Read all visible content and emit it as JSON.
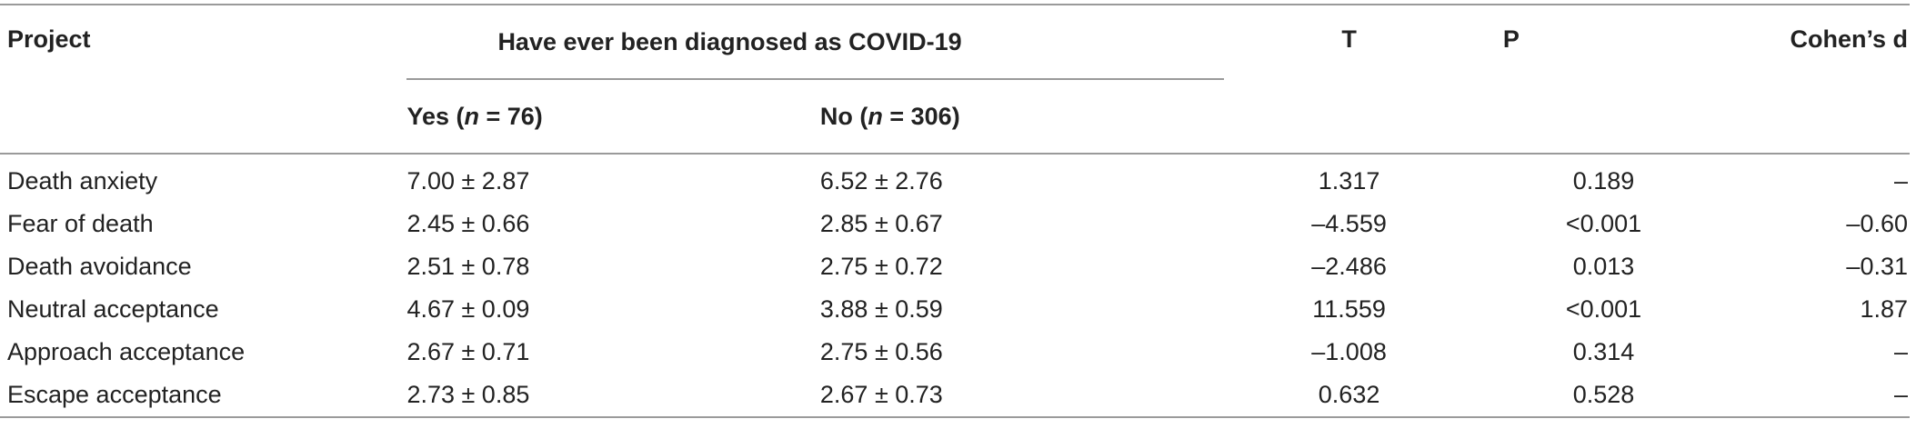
{
  "table": {
    "headers": {
      "project": "Project",
      "group": "Have ever been diagnosed as COVID-19",
      "yes_prefix": "Yes (",
      "yes_n": "n",
      "yes_suffix": " = 76)",
      "no_prefix": "No (",
      "no_n": "n",
      "no_suffix": " = 306)",
      "t": "T",
      "p": "P",
      "d": "Cohen’s d"
    },
    "rows": [
      {
        "project": "Death anxiety",
        "yes": "7.00 ± 2.87",
        "no": "6.52 ± 2.76",
        "t": "1.317",
        "p": "0.189",
        "d": "–"
      },
      {
        "project": "Fear of death",
        "yes": "2.45 ± 0.66",
        "no": "2.85 ± 0.67",
        "t": "–4.559",
        "p": "<0.001",
        "d": "–0.60"
      },
      {
        "project": "Death avoidance",
        "yes": "2.51 ± 0.78",
        "no": "2.75 ± 0.72",
        "t": "–2.486",
        "p": "0.013",
        "d": "–0.31"
      },
      {
        "project": "Neutral acceptance",
        "yes": "4.67 ± 0.09",
        "no": "3.88 ± 0.59",
        "t": "11.559",
        "p": "<0.001",
        "d": "1.87"
      },
      {
        "project": "Approach acceptance",
        "yes": "2.67 ± 0.71",
        "no": "2.75 ± 0.56",
        "t": "–1.008",
        "p": "0.314",
        "d": "–"
      },
      {
        "project": "Escape acceptance",
        "yes": "2.73 ± 0.85",
        "no": "2.67 ± 0.73",
        "t": "0.632",
        "p": "0.528",
        "d": "–"
      }
    ]
  }
}
